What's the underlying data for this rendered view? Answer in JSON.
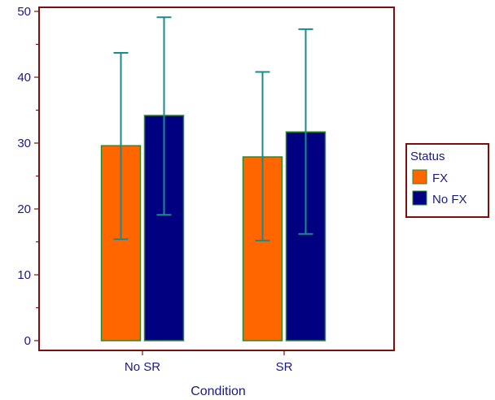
{
  "chart_data": {
    "type": "bar",
    "title": "",
    "xlabel": "Condition",
    "ylabel": "",
    "categories": [
      "No SR",
      "SR"
    ],
    "ylim": [
      0,
      50
    ],
    "yticks": [
      "0",
      "10",
      "20",
      "30",
      "40",
      "50"
    ],
    "grid": false,
    "legend": {
      "title": "Status",
      "position": "right"
    },
    "series": [
      {
        "name": "FX",
        "color": "#ff6600",
        "values": [
          29.6,
          27.9
        ],
        "error_low": [
          15.4,
          15.2
        ],
        "error_high": [
          43.7,
          40.8
        ]
      },
      {
        "name": "No FX",
        "color": "#000080",
        "values": [
          34.2,
          31.7
        ],
        "error_low": [
          19.1,
          16.2
        ],
        "error_high": [
          49.1,
          47.3
        ]
      }
    ],
    "colors": {
      "frame": "#7a1010",
      "bar_border": "#2a8a2a",
      "error_bar": "#1a8a8a",
      "text": "#1a1a80"
    }
  }
}
